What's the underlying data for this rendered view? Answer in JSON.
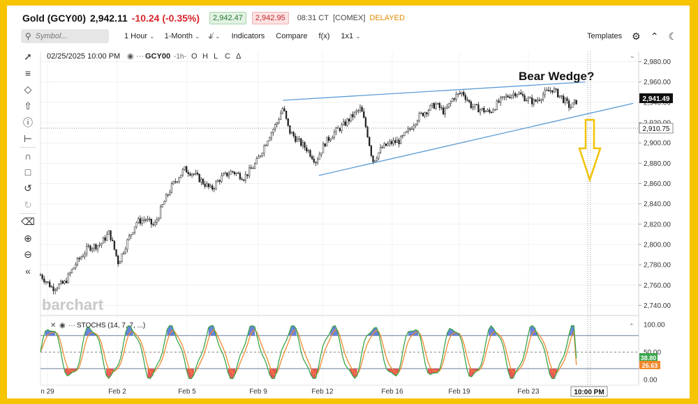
{
  "header": {
    "title": "Gold (GCY00)",
    "price": "2,942.11",
    "change": "-10.24 (-0.35%)",
    "bid": "2,942.47",
    "ask": "2,942.95",
    "time": "08:31 CT",
    "exchange": "[COMEX]",
    "status": "DELAYED"
  },
  "toolbar": {
    "search_placeholder": "Symbol...",
    "interval": "1 Hour",
    "range": "1-Month",
    "compare_tool": "⫝̸",
    "indicators": "Indicators",
    "compare": "Compare",
    "fx": "f(x)",
    "layout": "1x1",
    "templates": "Templates"
  },
  "legend": {
    "date": "02/25/2025 10:00 PM",
    "symbol": "GCY00",
    "timeframe": "-1h-",
    "ohlc": [
      "O",
      "H",
      "L",
      "C",
      "Δ"
    ]
  },
  "annotation": {
    "text": "Bear Wedge?"
  },
  "watermark": "barchart",
  "stoch": {
    "label": "STOCHS (14, 7, 7, ...)",
    "k_value": "38.80",
    "d_value": "26.63"
  },
  "price_axis": {
    "ticks": [
      "2,980.00",
      "2,960.00",
      "2,940.00",
      "2,920.00",
      "2,900.00",
      "2,880.00",
      "2,860.00",
      "2,840.00",
      "2,820.00",
      "2,800.00",
      "2,780.00",
      "2,760.00",
      "2,740.00"
    ],
    "last_price": "2,941.49",
    "crosshair_price": "2,910.75"
  },
  "stoch_axis": {
    "ticks": [
      "100.00",
      "50.00",
      "0.00"
    ]
  },
  "time_axis": {
    "labels": [
      "n 29",
      "Feb 2",
      "Feb 5",
      "Feb 9",
      "Feb 12",
      "Feb 16",
      "Feb 19",
      "Feb 23"
    ],
    "crosshair_time": "10:00 PM"
  },
  "colors": {
    "candle": "#222222",
    "wedge": "#5b9bd5",
    "arrow": "#f2c200",
    "stoch_k": "#3aa54b",
    "stoch_d": "#f0882d",
    "overbought_fill": "#4a6cd4",
    "oversold_fill": "#e53935"
  },
  "icons": {
    "tools": [
      "trendline-icon",
      "fib-icon",
      "shape-icon",
      "arrow-up-icon",
      "info-icon",
      "measure-icon",
      "magnet-icon",
      "lock-icon",
      "undo-icon",
      "redo-icon",
      "trash-icon",
      "zoom-in-icon",
      "zoom-out-icon",
      "collapse-icon"
    ],
    "right": [
      "gear-icon",
      "expand-icon",
      "dark-mode-icon"
    ]
  },
  "chart_data": {
    "type": "candlestick",
    "instrument": "Gold (GCY00)",
    "interval": "1 Hour",
    "x_labels": [
      "n 29",
      "Feb 2",
      "Feb 5",
      "Feb 9",
      "Feb 12",
      "Feb 16",
      "Feb 19",
      "Feb 23"
    ],
    "ylim": [
      2730,
      2990
    ],
    "close_path": [
      {
        "x": 0.0,
        "y": 2770
      },
      {
        "x": 0.02,
        "y": 2757
      },
      {
        "x": 0.04,
        "y": 2762
      },
      {
        "x": 0.06,
        "y": 2782
      },
      {
        "x": 0.08,
        "y": 2797
      },
      {
        "x": 0.1,
        "y": 2800
      },
      {
        "x": 0.115,
        "y": 2812
      },
      {
        "x": 0.13,
        "y": 2782
      },
      {
        "x": 0.145,
        "y": 2803
      },
      {
        "x": 0.16,
        "y": 2822
      },
      {
        "x": 0.175,
        "y": 2825
      },
      {
        "x": 0.19,
        "y": 2818
      },
      {
        "x": 0.205,
        "y": 2840
      },
      {
        "x": 0.22,
        "y": 2858
      },
      {
        "x": 0.24,
        "y": 2874
      },
      {
        "x": 0.255,
        "y": 2870
      },
      {
        "x": 0.27,
        "y": 2862
      },
      {
        "x": 0.285,
        "y": 2854
      },
      {
        "x": 0.3,
        "y": 2865
      },
      {
        "x": 0.32,
        "y": 2872
      },
      {
        "x": 0.34,
        "y": 2866
      },
      {
        "x": 0.36,
        "y": 2880
      },
      {
        "x": 0.38,
        "y": 2905
      },
      {
        "x": 0.395,
        "y": 2920
      },
      {
        "x": 0.405,
        "y": 2935
      },
      {
        "x": 0.415,
        "y": 2912
      },
      {
        "x": 0.43,
        "y": 2902
      },
      {
        "x": 0.445,
        "y": 2894
      },
      {
        "x": 0.46,
        "y": 2882
      },
      {
        "x": 0.475,
        "y": 2900
      },
      {
        "x": 0.49,
        "y": 2910
      },
      {
        "x": 0.505,
        "y": 2917
      },
      {
        "x": 0.52,
        "y": 2926
      },
      {
        "x": 0.535,
        "y": 2934
      },
      {
        "x": 0.545,
        "y": 2912
      },
      {
        "x": 0.555,
        "y": 2882
      },
      {
        "x": 0.57,
        "y": 2895
      },
      {
        "x": 0.585,
        "y": 2900
      },
      {
        "x": 0.6,
        "y": 2902
      },
      {
        "x": 0.615,
        "y": 2912
      },
      {
        "x": 0.63,
        "y": 2925
      },
      {
        "x": 0.645,
        "y": 2932
      },
      {
        "x": 0.66,
        "y": 2938
      },
      {
        "x": 0.675,
        "y": 2930
      },
      {
        "x": 0.69,
        "y": 2945
      },
      {
        "x": 0.705,
        "y": 2950
      },
      {
        "x": 0.72,
        "y": 2936
      },
      {
        "x": 0.735,
        "y": 2933
      },
      {
        "x": 0.75,
        "y": 2930
      },
      {
        "x": 0.765,
        "y": 2940
      },
      {
        "x": 0.78,
        "y": 2946
      },
      {
        "x": 0.795,
        "y": 2950
      },
      {
        "x": 0.81,
        "y": 2944
      },
      {
        "x": 0.825,
        "y": 2940
      },
      {
        "x": 0.84,
        "y": 2948
      },
      {
        "x": 0.855,
        "y": 2953
      },
      {
        "x": 0.87,
        "y": 2945
      },
      {
        "x": 0.885,
        "y": 2935
      },
      {
        "x": 0.895,
        "y": 2941
      }
    ],
    "wedge_upper": [
      {
        "x": 0.405,
        "y": 2942
      },
      {
        "x": 0.91,
        "y": 2960
      }
    ],
    "wedge_lower": [
      {
        "x": 0.465,
        "y": 2868
      },
      {
        "x": 0.99,
        "y": 2939
      }
    ],
    "stochastic": {
      "name": "STOCHS (14, 7, 7, ...)",
      "levels": [
        80,
        50,
        20
      ],
      "k_last": 38.8,
      "d_last": 26.63
    }
  }
}
